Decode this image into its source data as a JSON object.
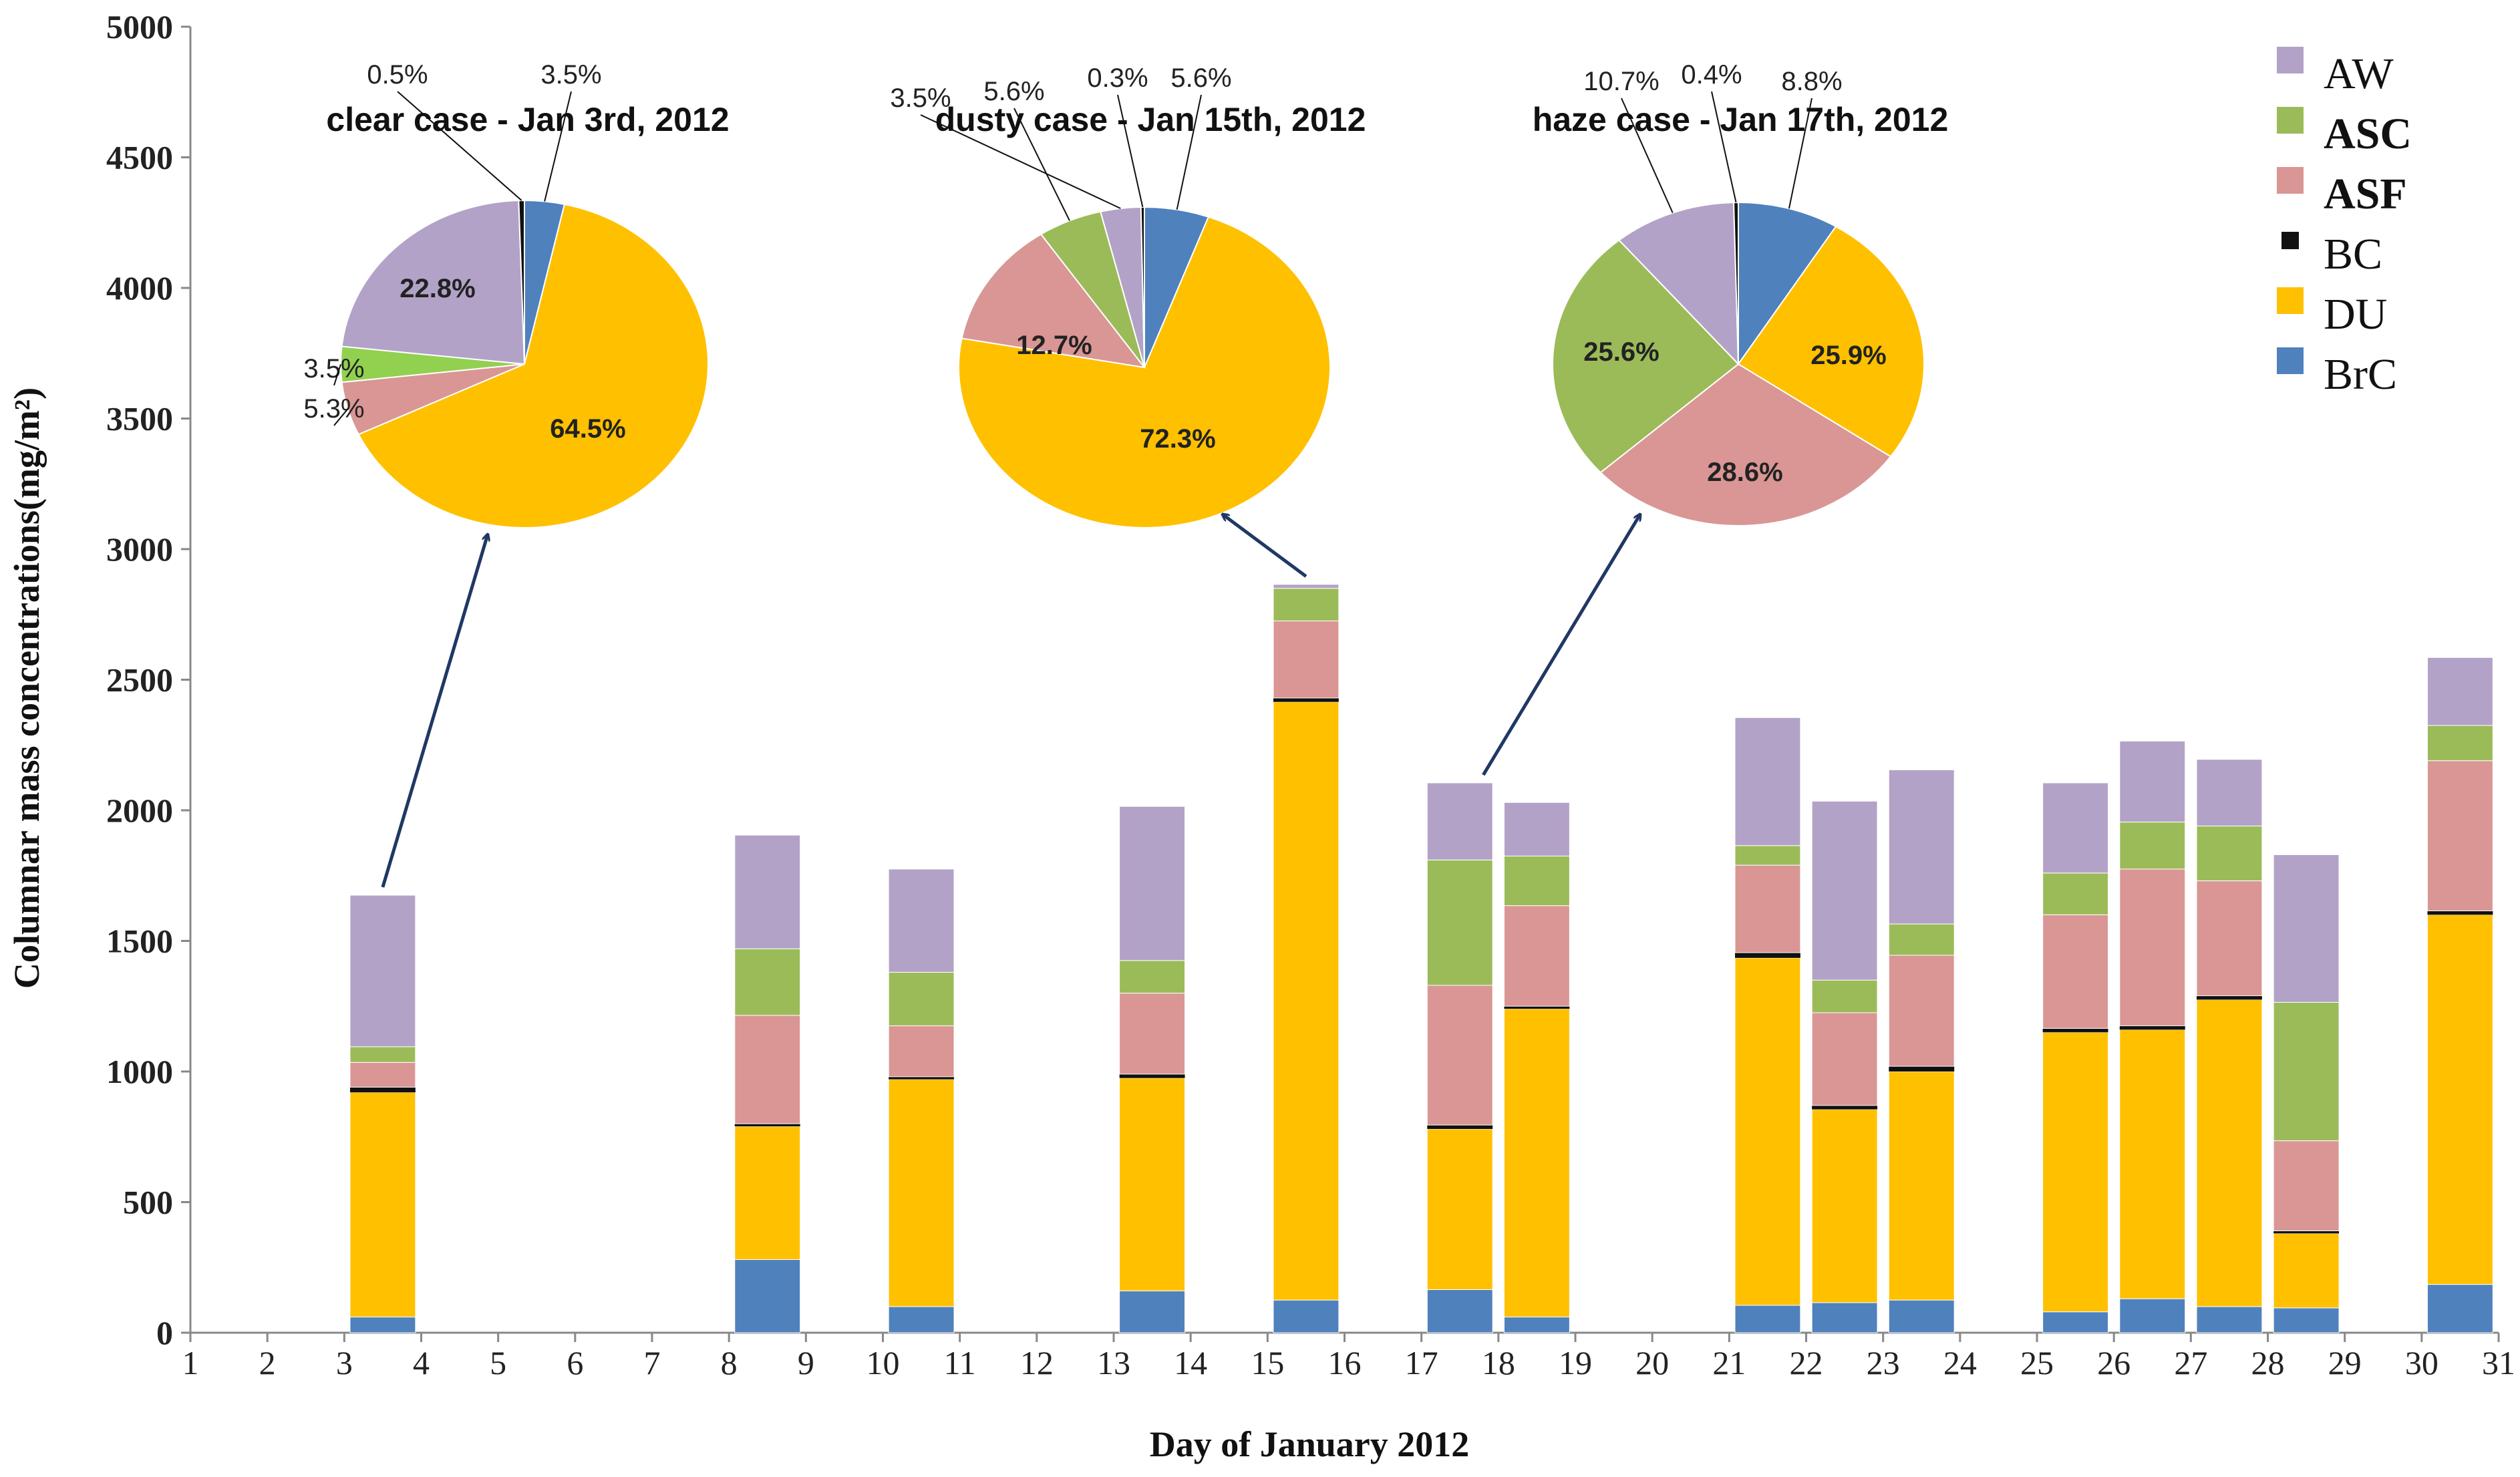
{
  "colors": {
    "AW": "#B3A2C7",
    "ASC": "#9BBB59",
    "ASF": "#D99694",
    "BC": "#111111",
    "DU": "#FFC000",
    "BrC": "#4F81BD",
    "ASC_clear": "#92D050",
    "arrow": "#1F3864"
  },
  "chart_data": [
    {
      "type": "bar",
      "stacked": true,
      "xlabel": "Day of January 2012",
      "ylabel": "Columnar mass concentrations(mg/m²)",
      "ylim": [
        0,
        5000
      ],
      "yticks": [
        "0",
        "500",
        "1000",
        "1500",
        "2000",
        "2500",
        "3000",
        "3500",
        "4000",
        "4500",
        "5000"
      ],
      "xticks": [
        "1",
        "2",
        "3",
        "4",
        "5",
        "6",
        "7",
        "8",
        "9",
        "10",
        "11",
        "12",
        "13",
        "14",
        "15",
        "16",
        "17",
        "18",
        "19",
        "20",
        "21",
        "22",
        "23",
        "24",
        "25",
        "26",
        "27",
        "28",
        "29",
        "30",
        "31"
      ],
      "categories": [
        3,
        8,
        10,
        13,
        15,
        17,
        18,
        21,
        22,
        23,
        25,
        26,
        27,
        28,
        30
      ],
      "legend": [
        "AW",
        "ASC",
        "ASF",
        "BC",
        "DU",
        "BrC"
      ],
      "legend_position": "top-right",
      "series": [
        {
          "name": "BrC",
          "values": [
            60,
            280,
            100,
            160,
            125,
            165,
            60,
            105,
            115,
            125,
            80,
            130,
            100,
            95,
            185
          ]
        },
        {
          "name": "DU",
          "values": [
            860,
            510,
            870,
            815,
            2290,
            615,
            1180,
            1330,
            740,
            875,
            1070,
            1030,
            1175,
            285,
            1415
          ]
        },
        {
          "name": "BC",
          "values": [
            20,
            10,
            10,
            15,
            15,
            15,
            10,
            20,
            15,
            20,
            15,
            15,
            15,
            10,
            15
          ]
        },
        {
          "name": "ASF",
          "values": [
            95,
            415,
            195,
            310,
            295,
            535,
            385,
            335,
            355,
            425,
            435,
            600,
            440,
            345,
            575
          ]
        },
        {
          "name": "ASC",
          "values": [
            60,
            255,
            205,
            125,
            125,
            480,
            190,
            75,
            125,
            120,
            160,
            180,
            210,
            530,
            135
          ]
        },
        {
          "name": "AW",
          "values": [
            580,
            435,
            395,
            590,
            15,
            295,
            205,
            490,
            685,
            590,
            345,
            310,
            255,
            565,
            260
          ]
        }
      ]
    },
    {
      "type": "pie",
      "title": "clear case - Jan 3rd, 2012",
      "labels": [
        "BrC",
        "DU",
        "ASF",
        "ASC",
        "AW",
        "BC"
      ],
      "values": [
        3.5,
        64.5,
        5.3,
        3.5,
        22.8,
        0.5
      ],
      "value_labels": [
        "3.5%",
        "64.5%",
        "5.3%",
        "3.5%",
        "22.8%",
        "0.5%"
      ],
      "points_to_day": 3
    },
    {
      "type": "pie",
      "title": "dusty case - Jan 15th, 2012",
      "labels": [
        "BrC",
        "DU",
        "ASF",
        "ASC",
        "AW",
        "BC"
      ],
      "values": [
        5.6,
        72.3,
        12.7,
        5.6,
        3.5,
        0.3
      ],
      "value_labels": [
        "5.6%",
        "72.3%",
        "12.7%",
        "5.6%",
        "3.5%",
        "0.3%"
      ],
      "points_to_day": 15
    },
    {
      "type": "pie",
      "title": "haze case - Jan 17th, 2012",
      "labels": [
        "BrC",
        "DU",
        "ASF",
        "ASC",
        "AW",
        "BC"
      ],
      "values": [
        8.8,
        25.9,
        28.6,
        25.6,
        10.7,
        0.4
      ],
      "value_labels": [
        "8.8%",
        "25.9%",
        "28.6%",
        "25.6%",
        "10.7%",
        "0.4%"
      ],
      "points_to_day": 17
    }
  ]
}
